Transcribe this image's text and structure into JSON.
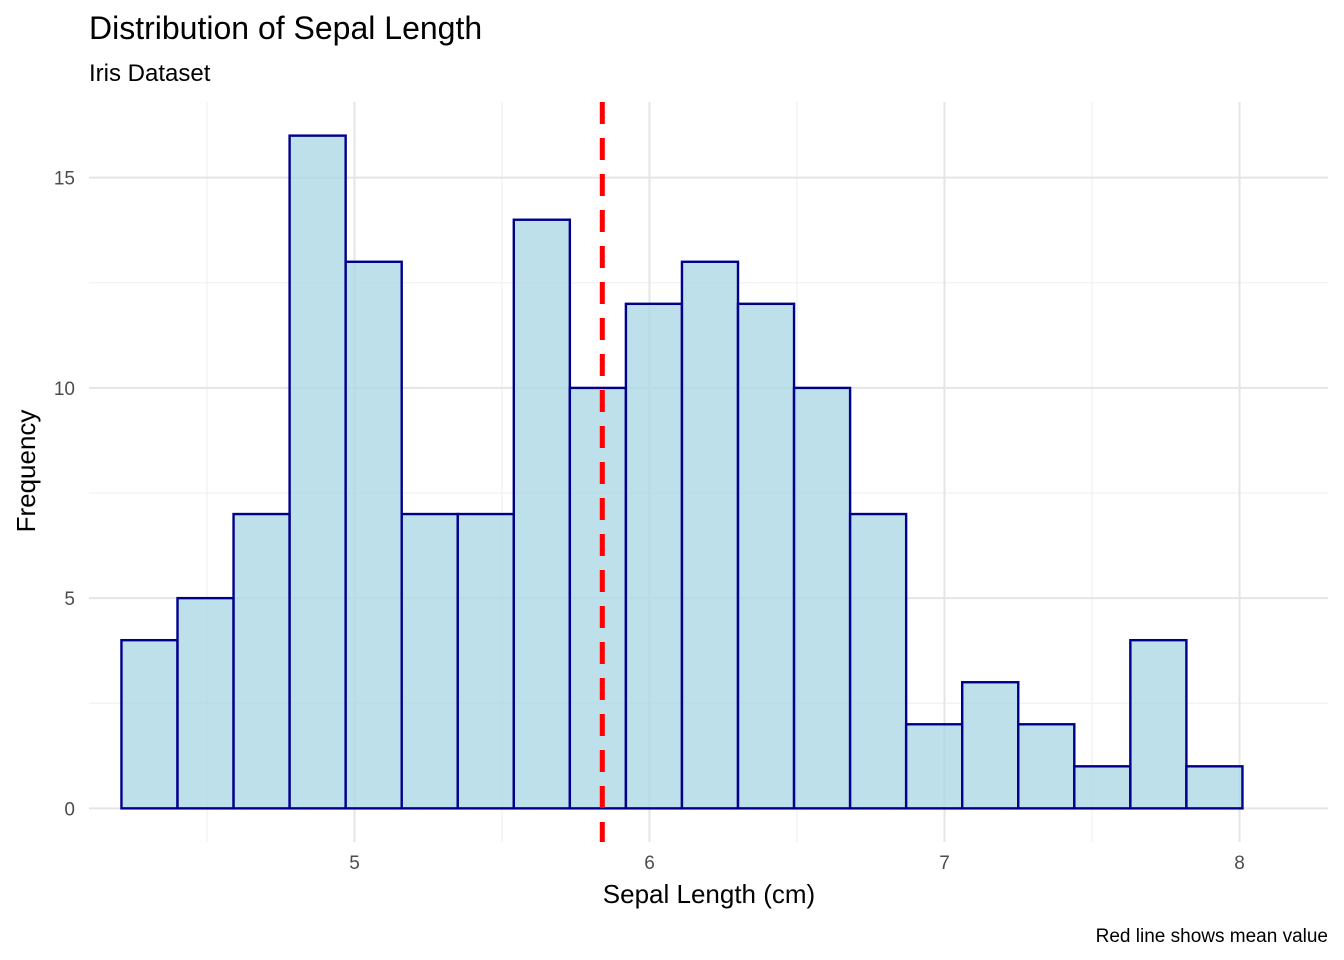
{
  "chart_data": {
    "type": "bar",
    "title": "Distribution of Sepal Length",
    "subtitle": "Iris Dataset",
    "xlabel": "Sepal Length (cm)",
    "ylabel": "Frequency",
    "caption": "Red line shows mean value",
    "bin_edges": [
      4.21,
      4.4,
      4.59,
      4.78,
      4.97,
      5.16,
      5.35,
      5.54,
      5.73,
      5.92,
      6.11,
      6.3,
      6.49,
      6.68,
      6.87,
      7.06,
      7.25,
      7.44,
      7.63,
      7.82,
      8.01
    ],
    "values": [
      4,
      5,
      7,
      16,
      13,
      7,
      7,
      14,
      10,
      12,
      13,
      12,
      10,
      7,
      2,
      3,
      2,
      1,
      4,
      1
    ],
    "mean_line": 5.84,
    "xlim": [
      4.1,
      8.3
    ],
    "ylim": [
      -0.8,
      16.8
    ],
    "x_ticks": [
      5,
      6,
      7,
      8
    ],
    "x_tick_labels": [
      "5",
      "6",
      "7",
      "8"
    ],
    "y_ticks": [
      0,
      5,
      10,
      15
    ],
    "y_tick_labels": [
      "0",
      "5",
      "10",
      "15"
    ],
    "grid": true,
    "legend": "none",
    "colors": {
      "bar_fill": "#add8e6",
      "bar_stroke": "#00008b",
      "mean_line": "#ff0000"
    }
  }
}
